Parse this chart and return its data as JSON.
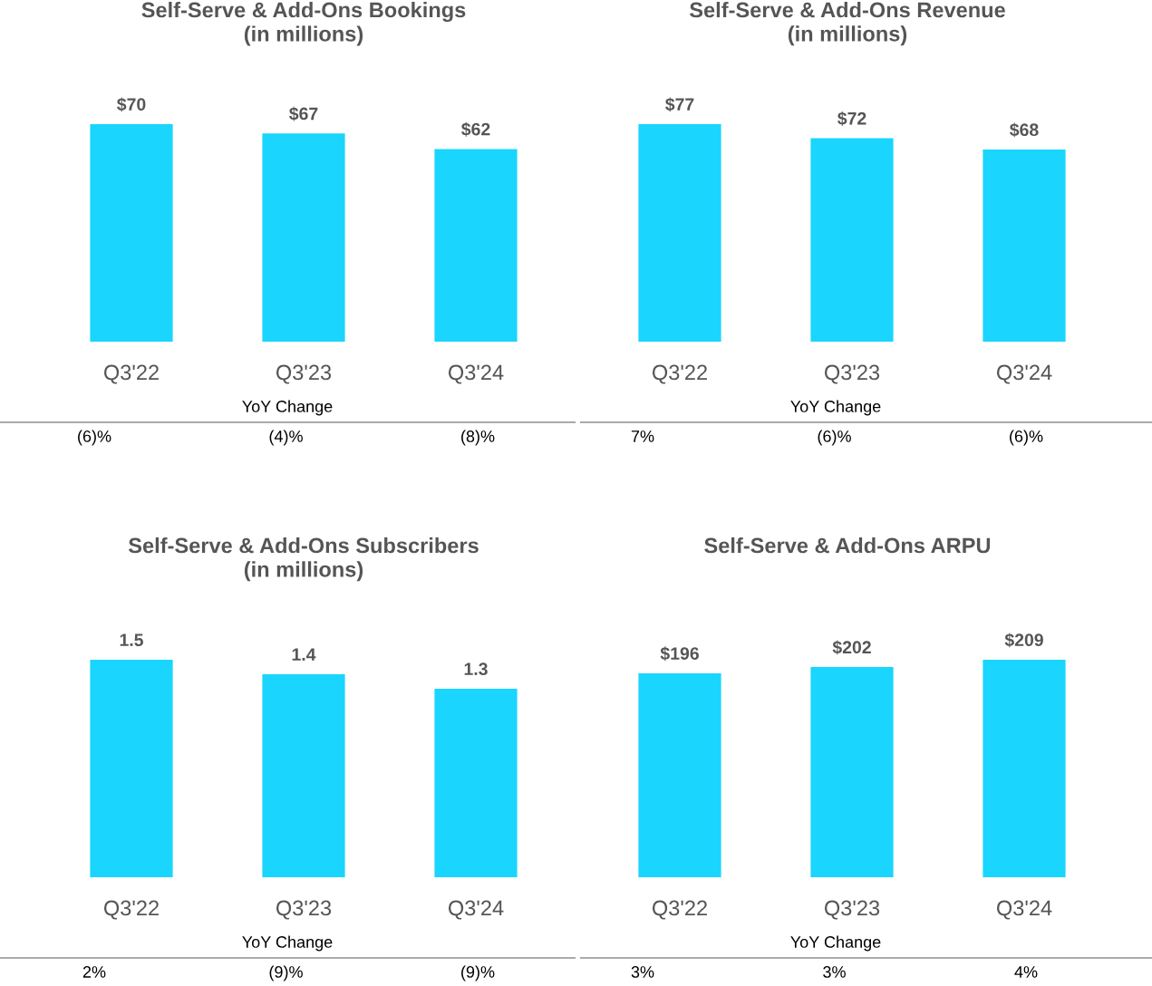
{
  "chart_data": [
    {
      "type": "bar",
      "title": "Self-Serve & Add-Ons Bookings\n(in millions)",
      "categories": [
        "Q3'22",
        "Q3'23",
        "Q3'24"
      ],
      "values": [
        70,
        67,
        62
      ],
      "value_labels": [
        "$70",
        "$67",
        "$62"
      ],
      "color": "#1ad5fd",
      "annotations": [
        "YoY Change",
        "(6)%",
        "(4)%",
        "(8)%"
      ]
    },
    {
      "type": "bar",
      "title": "Self-Serve & Add-Ons Revenue\n(in millions)",
      "categories": [
        "Q3'22",
        "Q3'23",
        "Q3'24"
      ],
      "values": [
        77,
        72,
        68
      ],
      "value_labels": [
        "$77",
        "$72",
        "$68"
      ],
      "color": "#1ad5fd",
      "annotations": [
        "YoY Change",
        "7%",
        "(6)%",
        "(6)%"
      ]
    },
    {
      "type": "bar",
      "title": "Self-Serve & Add-Ons Subscribers\n(in millions)",
      "categories": [
        "Q3'22",
        "Q3'23",
        "Q3'24"
      ],
      "values": [
        1.5,
        1.4,
        1.3
      ],
      "value_labels": [
        "1.5",
        "1.4",
        "1.3"
      ],
      "color": "#1ad5fd",
      "annotations": [
        "YoY Change",
        "2%",
        "(9)%",
        "(9)%"
      ]
    },
    {
      "type": "bar",
      "title": "Self-Serve & Add-Ons ARPU",
      "categories": [
        "Q3'22",
        "Q3'23",
        "Q3'24"
      ],
      "values": [
        196,
        202,
        209
      ],
      "value_labels": [
        "$196",
        "$202",
        "$209"
      ],
      "color": "#1ad5fd",
      "annotations": [
        "YoY Change",
        "3%",
        "3%",
        "4%"
      ]
    }
  ]
}
